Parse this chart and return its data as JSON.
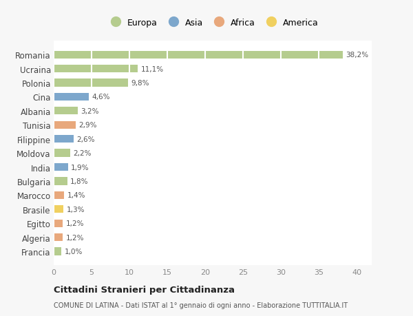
{
  "countries": [
    "Romania",
    "Ucraina",
    "Polonia",
    "Cina",
    "Albania",
    "Tunisia",
    "Filippine",
    "Moldova",
    "India",
    "Bulgaria",
    "Marocco",
    "Brasile",
    "Egitto",
    "Algeria",
    "Francia"
  ],
  "values": [
    38.2,
    11.1,
    9.8,
    4.6,
    3.2,
    2.9,
    2.6,
    2.2,
    1.9,
    1.8,
    1.4,
    1.3,
    1.2,
    1.2,
    1.0
  ],
  "labels": [
    "38,2%",
    "11,1%",
    "9,8%",
    "4,6%",
    "3,2%",
    "2,9%",
    "2,6%",
    "2,2%",
    "1,9%",
    "1,8%",
    "1,4%",
    "1,3%",
    "1,2%",
    "1,2%",
    "1,0%"
  ],
  "continent": [
    "Europa",
    "Europa",
    "Europa",
    "Asia",
    "Europa",
    "Africa",
    "Asia",
    "Europa",
    "Asia",
    "Europa",
    "Africa",
    "America",
    "Africa",
    "Africa",
    "Europa"
  ],
  "colors": {
    "Europa": "#b5cc8e",
    "Asia": "#7da7cc",
    "Africa": "#e8a87c",
    "America": "#f0d060"
  },
  "xlim": [
    0,
    42
  ],
  "xticks": [
    0,
    5,
    10,
    15,
    20,
    25,
    30,
    35,
    40
  ],
  "title": "Cittadini Stranieri per Cittadinanza",
  "subtitle": "COMUNE DI LATINA - Dati ISTAT al 1° gennaio di ogni anno - Elaborazione TUTTITALIA.IT",
  "bg_color": "#f7f7f7",
  "plot_bg_color": "#ffffff",
  "grid_color": "#ffffff",
  "bar_height": 0.55,
  "legend_order": [
    "Europa",
    "Asia",
    "Africa",
    "America"
  ]
}
